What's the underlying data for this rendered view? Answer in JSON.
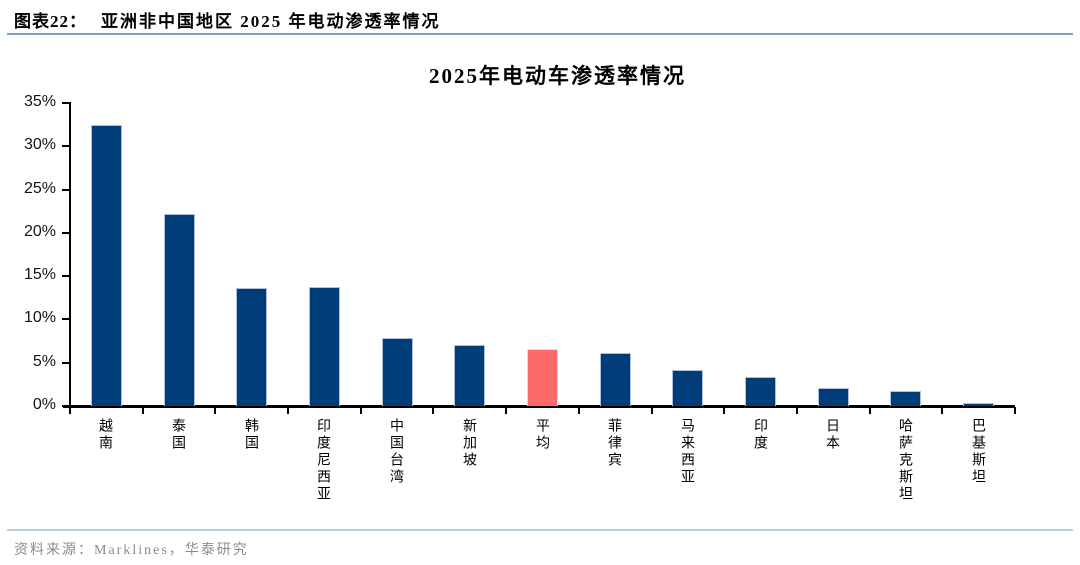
{
  "figure": {
    "label": "图表22：",
    "title": "亚洲非中国地区 2025 年电动渗透率情况"
  },
  "chart_data": {
    "type": "bar",
    "title": "2025年电动车渗透率情况",
    "categories": [
      "越南",
      "泰国",
      "韩国",
      "印度尼西亚",
      "中国台湾",
      "新加坡",
      "平均",
      "菲律宾",
      "马来西亚",
      "印度",
      "日本",
      "哈萨克斯坦",
      "巴基斯坦"
    ],
    "values": [
      32.5,
      22.2,
      13.6,
      13.7,
      7.9,
      7.0,
      6.6,
      6.1,
      4.2,
      3.3,
      2.1,
      1.7,
      0.3
    ],
    "unit": "%",
    "highlight_index": 6,
    "highlight_category": "平均",
    "bar_color": "#003C78",
    "bar_edge_color": "#AFC0D8",
    "highlight_color": "#FC6A6A",
    "highlight_edge_color": "#FBD0D0",
    "ylim": [
      0,
      35
    ],
    "ytick_step": 5,
    "ytick_labels": [
      "0%",
      "5%",
      "10%",
      "15%",
      "20%",
      "25%",
      "30%",
      "35%"
    ],
    "grid": false,
    "legend": "none"
  },
  "decor": {
    "header_rule_color": "#7D9EC8",
    "footer_rule_color": "#BCCCDF"
  },
  "footer": {
    "source": "资料来源：Marklines，华泰研究"
  }
}
